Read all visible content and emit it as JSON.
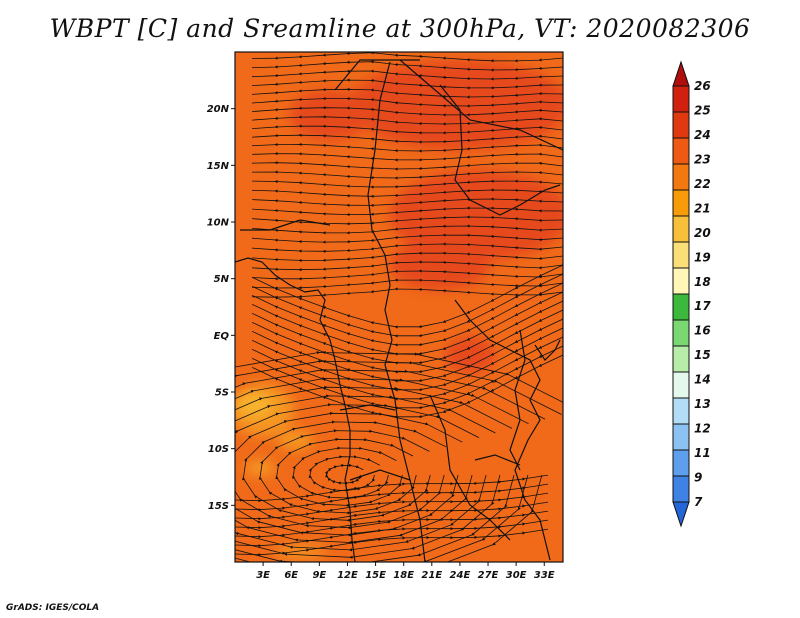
{
  "title": "WBPT [C] and Sreamline at 300hPa, VT: 2020082306",
  "credit": "GrADS: IGES/COLA",
  "map": {
    "lon_range": [
      0,
      35
    ],
    "lat_range": [
      -20,
      25
    ],
    "lat_ticks": [
      "20N",
      "15N",
      "10N",
      "5N",
      "EQ",
      "5S",
      "10S",
      "15S"
    ],
    "lon_ticks": [
      "3E",
      "6E",
      "9E",
      "12E",
      "15E",
      "18E",
      "21E",
      "24E",
      "27E",
      "30E",
      "33E"
    ],
    "colors": {
      "base_field": "#f06a1a",
      "warm_field": "#e64a1e",
      "cool_field": "#f59620",
      "cooler_field": "#f8b42e"
    }
  },
  "colorbar": {
    "labels": [
      "26",
      "25",
      "24",
      "23",
      "22",
      "21",
      "20",
      "19",
      "18",
      "17",
      "16",
      "15",
      "14",
      "13",
      "12",
      "11",
      "9",
      "7"
    ],
    "colors": [
      "#b10d0d",
      "#d1200e",
      "#e0380f",
      "#ee5a14",
      "#f2780f",
      "#f79c08",
      "#f8bf3a",
      "#fadf78",
      "#fff6b8",
      "#3cb83c",
      "#7ad873",
      "#b7eda9",
      "#e4f8ee",
      "#b3dcf7",
      "#8cc2f2",
      "#5d9fec",
      "#3d82e4",
      "#2266d9"
    ]
  }
}
